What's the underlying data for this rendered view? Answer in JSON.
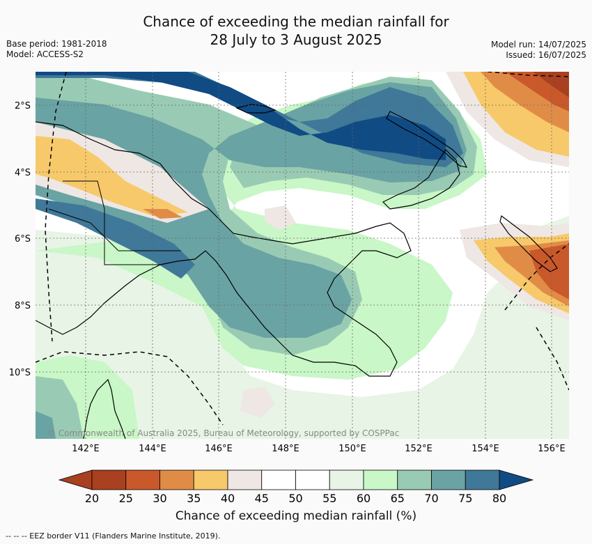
{
  "title_line1": "Chance of exceeding the median rainfall for",
  "title_line2": "28 July to 3 August 2025",
  "base_period": "Base period: 1981-2018",
  "model": "Model: ACCESS-S2",
  "model_run": "Model run: 14/07/2025",
  "issued": "Issued: 16/07/2025",
  "lat_labels": [
    "2°S",
    "4°S",
    "6°S",
    "8°S",
    "10°S"
  ],
  "lon_labels": [
    "142°E",
    "144°E",
    "146°E",
    "148°E",
    "150°E",
    "152°E",
    "154°E",
    "156°E"
  ],
  "copyright": "© Commonwealth of Australia 2025, Bureau of Meteorology, supported by COSPPac",
  "colorbar": {
    "ticks": [
      "20",
      "25",
      "30",
      "35",
      "40",
      "45",
      "50",
      "55",
      "60",
      "65",
      "70",
      "75",
      "80"
    ],
    "colors": [
      "#a9401f",
      "#c9582a",
      "#e08c47",
      "#f7c96a",
      "#eee7e3",
      "#ffffff",
      "#ffffff",
      "#e8f4e6",
      "#c9f7c7",
      "#99cbb4",
      "#6aa3a3",
      "#3f7898",
      "#104b84"
    ],
    "label": "Chance of exceeding median rainfall (%)"
  },
  "footnote": "--  --  -- EEZ border V11 (Flanders Marine Institute, 2019)."
}
